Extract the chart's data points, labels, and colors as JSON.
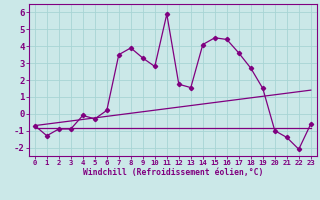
{
  "xlabel": "Windchill (Refroidissement éolien,°C)",
  "bg_color": "#cbe8e8",
  "line_color": "#800080",
  "xlim": [
    -0.5,
    23.5
  ],
  "ylim": [
    -2.5,
    6.5
  ],
  "yticks": [
    -2,
    -1,
    0,
    1,
    2,
    3,
    4,
    5,
    6
  ],
  "xticks": [
    0,
    1,
    2,
    3,
    4,
    5,
    6,
    7,
    8,
    9,
    10,
    11,
    12,
    13,
    14,
    15,
    16,
    17,
    18,
    19,
    20,
    21,
    22,
    23
  ],
  "series1_x": [
    0,
    1,
    2,
    3,
    4,
    5,
    6,
    7,
    8,
    9,
    10,
    11,
    12,
    13,
    14,
    15,
    16,
    17,
    18,
    19,
    20,
    21,
    22,
    23
  ],
  "series1_y": [
    -0.7,
    -1.3,
    -0.9,
    -0.9,
    -0.1,
    -0.3,
    0.2,
    3.5,
    3.9,
    3.3,
    2.8,
    5.9,
    1.75,
    1.55,
    4.1,
    4.5,
    4.4,
    3.6,
    2.7,
    1.5,
    -1.0,
    -1.4,
    -2.1,
    -0.6
  ],
  "series2_x": [
    0,
    23
  ],
  "series2_y": [
    -0.85,
    -0.85
  ],
  "series3_x": [
    0,
    23
  ],
  "series3_y": [
    -0.7,
    1.4
  ],
  "grid_color": "#a8d4d4",
  "xlabel_fontsize": 5.8,
  "tick_fontsize_x": 5.2,
  "tick_fontsize_y": 6.5
}
